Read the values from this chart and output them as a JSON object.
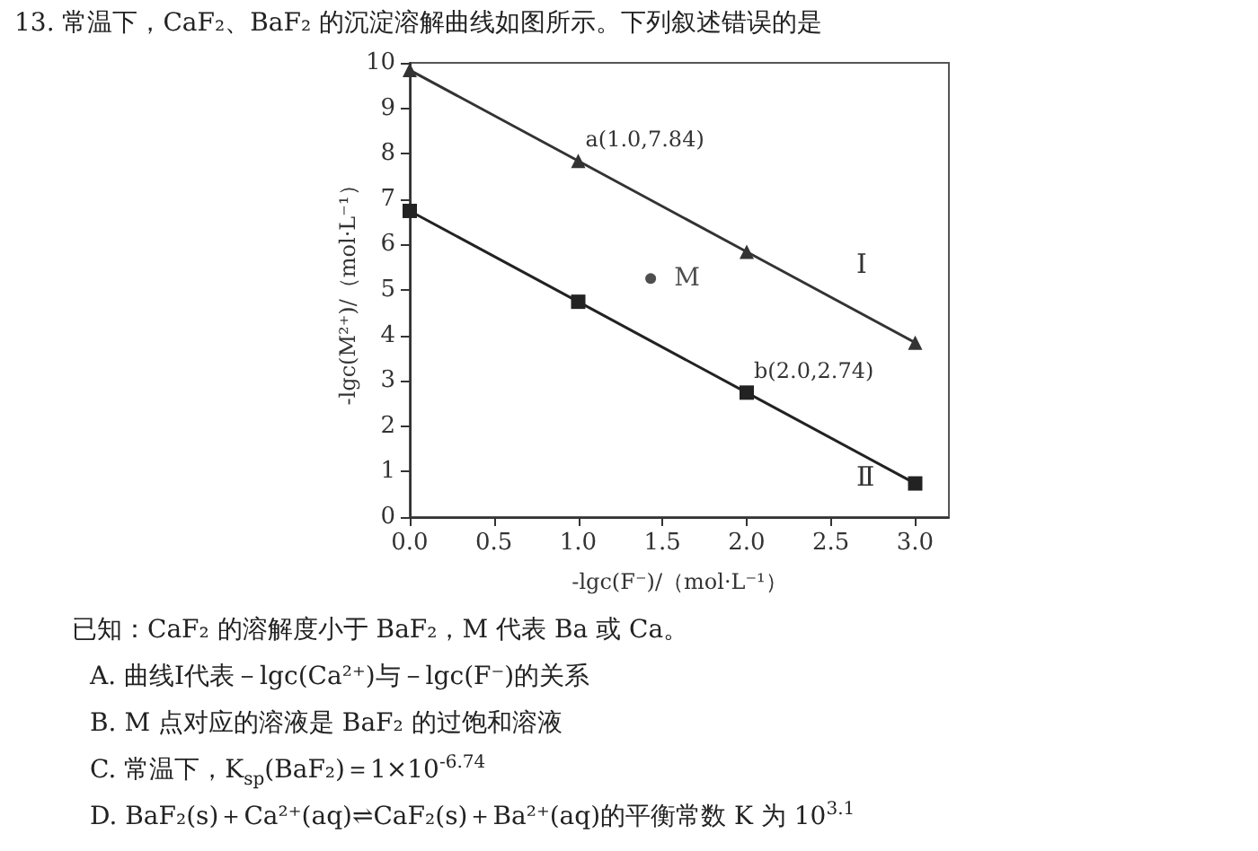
{
  "chart_data": {
    "type": "line",
    "title": "13. 常温下，CaF₂、BaF₂ 的沉淀溶解曲线如图所示。下列叙述错误的是",
    "xlabel": "-lgc(F⁻)/（mol·L⁻¹）",
    "ylabel": "-lgc(M²⁺)/（mol·L⁻¹）",
    "x": [
      0,
      1,
      2,
      3
    ],
    "series": [
      {
        "name": "Ⅰ",
        "color": "#333333",
        "marker": "triangle",
        "values": [
          9.84,
          7.84,
          5.84,
          3.84
        ]
      },
      {
        "name": "Ⅱ",
        "color": "#222222",
        "marker": "square",
        "values": [
          6.74,
          4.74,
          2.74,
          0.74
        ]
      },
      {
        "name": "M",
        "type": "scatter",
        "color": "#222222",
        "marker": "circle",
        "x": [
          1.43
        ],
        "values": [
          5.25
        ]
      }
    ],
    "xlim": [
      0,
      3.2
    ],
    "xticks": [
      {
        "value": 0,
        "label": "0.0"
      },
      0.5,
      {
        "value": 1,
        "label": "1.0"
      },
      1.5,
      {
        "value": 2,
        "label": "2.0"
      },
      2.5,
      {
        "value": 3,
        "label": "3.0"
      }
    ],
    "ylim": [
      0,
      10
    ],
    "yticks": [
      0,
      1,
      2,
      3,
      4,
      5,
      6,
      7,
      8,
      9,
      10
    ],
    "grid": false,
    "legend": false,
    "annotations": [
      {
        "text": "a(1.0,7.84)",
        "x": 1,
        "y": 7.84
      },
      {
        "text": "b(2.0,2.74)",
        "x": 2,
        "y": 2.74
      },
      "已知：CaF₂ 的溶解度小于 BaF₂，M 代表 Ba 或 Ca。",
      "A. 曲线Ⅰ代表－lgc(Ca²⁺)与－lgc(F⁻)的关系",
      "B. M 点对应的溶液是 BaF₂ 的过饱和溶液",
      "C. 常温下，K$_{sp}$(BaF₂)＝1×10$^{-6.74}$",
      "D. BaF₂(s)＋Ca²⁺(aq)⇌CaF₂(s)＋Ba²⁺(aq)的平衡常数 K 为 10$^{3.1}$"
    ]
  }
}
